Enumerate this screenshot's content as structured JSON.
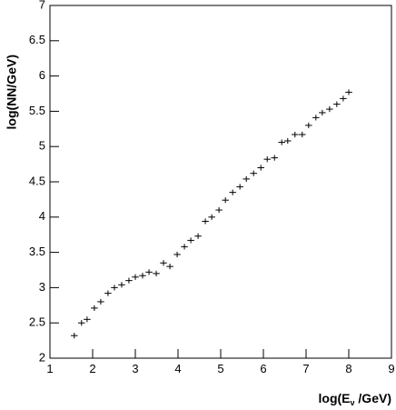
{
  "chart_data": {
    "type": "scatter",
    "ylabel": "log(NN/GeV)",
    "xlabel": {
      "main": "log(E",
      "sub": "ν",
      "rest": " /GeV)"
    },
    "xlim": [
      1,
      9
    ],
    "xticks": [
      1,
      2,
      3,
      4,
      5,
      6,
      7,
      8,
      9
    ],
    "ylim": [
      2,
      7
    ],
    "yticks": [
      2,
      2.5,
      3,
      3.5,
      4,
      4.5,
      5,
      5.5,
      6,
      6.5,
      7
    ],
    "color": "#000000",
    "xerr": 0.08,
    "yerr": 0.04,
    "x": [
      1.57,
      1.74,
      1.87,
      2.04,
      2.19,
      2.36,
      2.51,
      2.68,
      2.85,
      3.0,
      3.17,
      3.32,
      3.49,
      3.66,
      3.81,
      3.98,
      4.15,
      4.3,
      4.47,
      4.64,
      4.79,
      4.96,
      5.11,
      5.28,
      5.45,
      5.6,
      5.77,
      5.94,
      6.09,
      6.26,
      6.43,
      6.57,
      6.74,
      6.91,
      7.06,
      7.23,
      7.38,
      7.55,
      7.72,
      7.87,
      8.0
    ],
    "values": [
      2.32,
      2.5,
      2.55,
      2.71,
      2.8,
      2.92,
      3.0,
      3.04,
      3.1,
      3.15,
      3.17,
      3.22,
      3.2,
      3.35,
      3.3,
      3.47,
      3.58,
      3.67,
      3.73,
      3.94,
      4.0,
      4.1,
      4.24,
      4.35,
      4.43,
      4.54,
      4.62,
      4.7,
      4.82,
      4.84,
      5.06,
      5.08,
      5.17,
      5.17,
      5.3,
      5.41,
      5.48,
      5.53,
      5.6,
      5.68,
      5.77
    ]
  }
}
